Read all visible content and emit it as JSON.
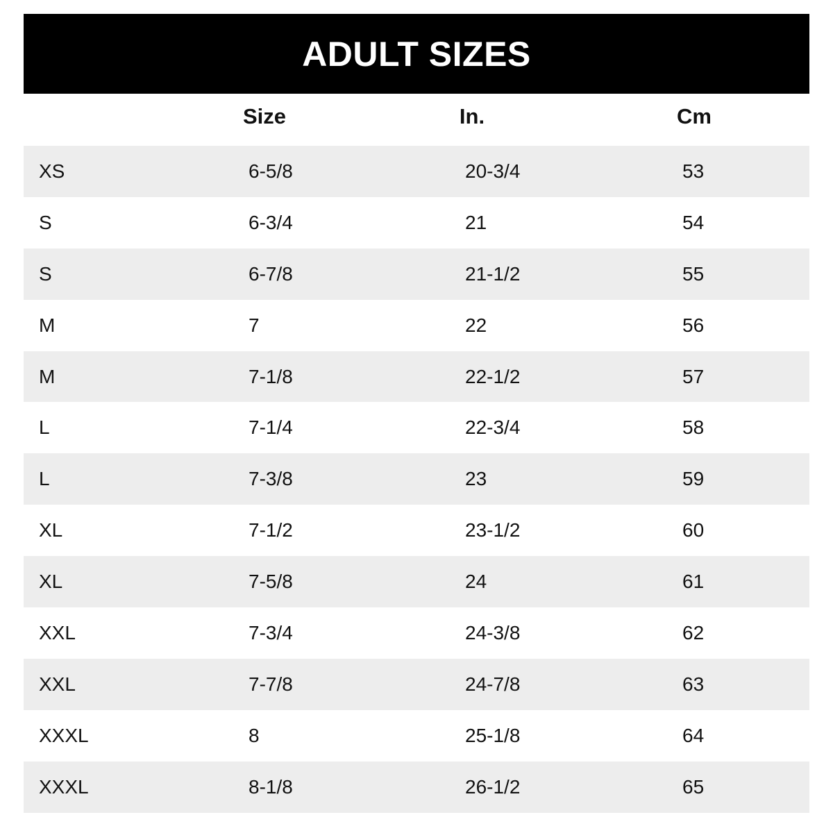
{
  "title": "ADULT SIZES",
  "columns": [
    "",
    "Size",
    "In.",
    "Cm"
  ],
  "rows": [
    [
      "XS",
      "6-5/8",
      "20-3/4",
      "53"
    ],
    [
      "S",
      "6-3/4",
      "21",
      "54"
    ],
    [
      "S",
      "6-7/8",
      "21-1/2",
      "55"
    ],
    [
      "M",
      "7",
      "22",
      "56"
    ],
    [
      "M",
      "7-1/8",
      "22-1/2",
      "57"
    ],
    [
      "L",
      "7-1/4",
      "22-3/4",
      "58"
    ],
    [
      "L",
      "7-3/8",
      "23",
      "59"
    ],
    [
      "XL",
      "7-1/2",
      "23-1/2",
      "60"
    ],
    [
      "XL",
      "7-5/8",
      "24",
      "61"
    ],
    [
      "XXL",
      "7-3/4",
      "24-3/8",
      "62"
    ],
    [
      "XXL",
      "7-7/8",
      "24-7/8",
      "63"
    ],
    [
      "XXXL",
      "8",
      "25-1/8",
      "64"
    ],
    [
      "XXXL",
      "8-1/8",
      "26-1/2",
      "65"
    ]
  ],
  "colors": {
    "title_bg": "#000000",
    "stripe": "#ededed"
  }
}
